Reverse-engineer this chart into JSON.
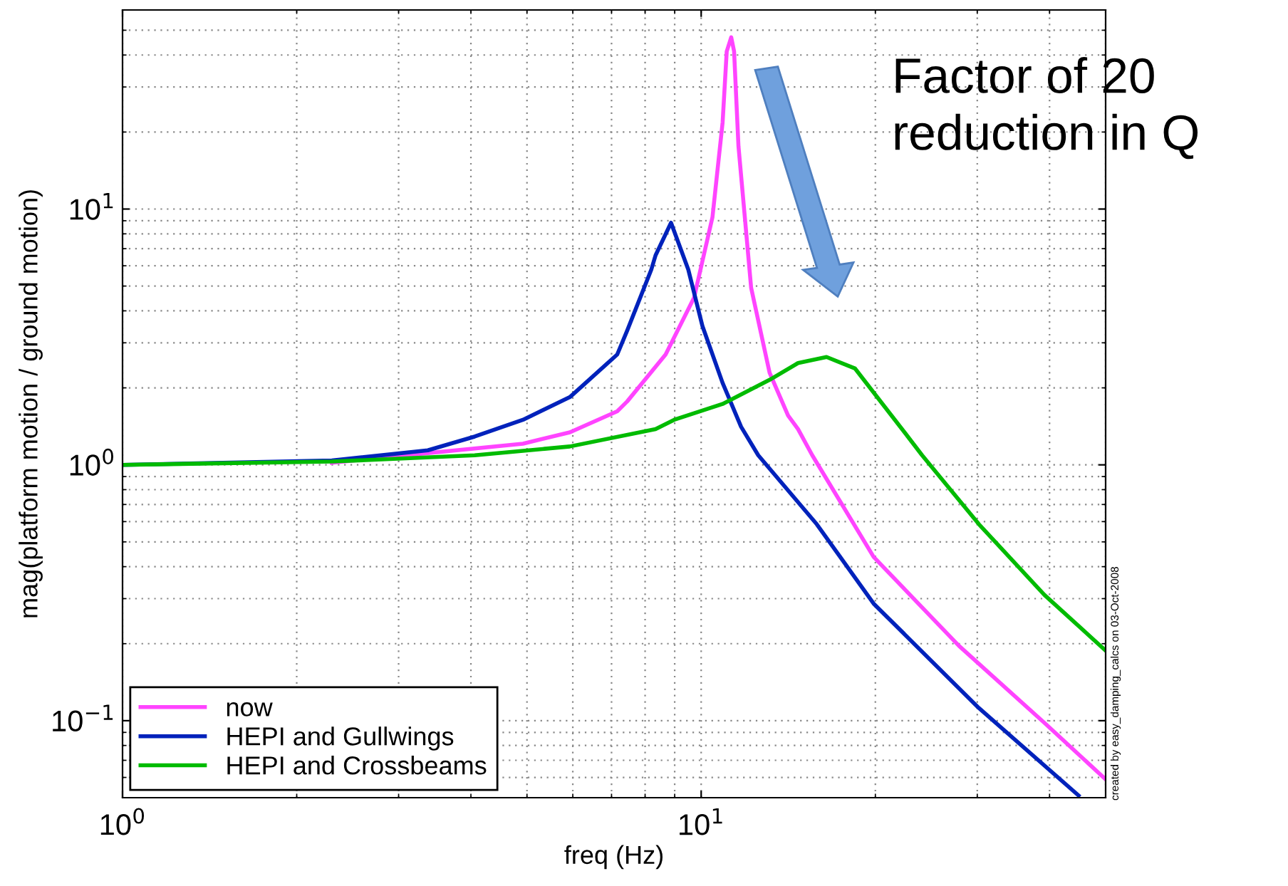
{
  "chart_data": {
    "type": "line",
    "xlabel": "freq (Hz)",
    "ylabel": "mag(platform motion / ground motion)",
    "log": "xy",
    "xlim": [
      1,
      50
    ],
    "ylim": [
      0.05,
      60
    ],
    "xticks": [
      {
        "value": 1,
        "label": "10$^{0}$"
      },
      {
        "value": 10,
        "label": "10$^{1}$"
      }
    ],
    "yticks": [
      {
        "value": 0.1,
        "label": "10$^{−1}$"
      },
      {
        "value": 1,
        "label": "10$^{0}$"
      },
      {
        "value": 10,
        "label": "10$^{1}$"
      }
    ],
    "grid": true,
    "legend": "bottom left",
    "line_style": "solid",
    "marker": "none",
    "series": [
      {
        "name": "now",
        "color": "#ff44ff",
        "x": [
          2.3,
          4.92,
          5.93,
          7.16,
          7.45,
          8.68,
          9.72,
          10.46,
          10.89,
          11.07,
          11.27,
          11.4,
          11.6,
          12.2,
          13.13,
          14.13,
          14.7,
          15.56,
          19.86,
          27.9,
          39.2,
          50
        ],
        "values": [
          1.02,
          1.21,
          1.34,
          1.62,
          1.77,
          2.7,
          4.5,
          9.3,
          21.8,
          41.3,
          46.9,
          41.3,
          17.6,
          4.92,
          2.29,
          1.56,
          1.38,
          1.09,
          0.437,
          0.196,
          0.098,
          0.059
        ]
      },
      {
        "name": "HEPI and Gullwings",
        "color": "#0022bb",
        "x": [
          1,
          2.3,
          3.37,
          4.06,
          4.92,
          5.93,
          7.16,
          7.45,
          8.2,
          8.34,
          8.87,
          9.5,
          10.05,
          10.89,
          11.72,
          12.55,
          15.84,
          19.86,
          30.2,
          44.9
        ],
        "values": [
          1.0,
          1.04,
          1.14,
          1.29,
          1.5,
          1.84,
          2.7,
          3.35,
          5.8,
          6.59,
          8.84,
          5.8,
          3.49,
          2.09,
          1.41,
          1.09,
          0.586,
          0.287,
          0.112,
          0.051
        ]
      },
      {
        "name": "HEPI and Crossbeams",
        "color": "#00bb00",
        "x": [
          1,
          2.3,
          4.06,
          5.93,
          8.34,
          8.98,
          10.89,
          13.13,
          14.7,
          16.47,
          18.45,
          20.66,
          22.24,
          24.09,
          30.2,
          39.2,
          50
        ],
        "values": [
          1.0,
          1.03,
          1.09,
          1.18,
          1.38,
          1.5,
          1.73,
          2.15,
          2.5,
          2.64,
          2.38,
          1.71,
          1.38,
          1.09,
          0.586,
          0.31,
          0.188
        ]
      }
    ],
    "annotations": [
      "Factor of 20\nreduction in Q",
      "created by easy_damping_calcs on 03-Oct-2008"
    ]
  }
}
